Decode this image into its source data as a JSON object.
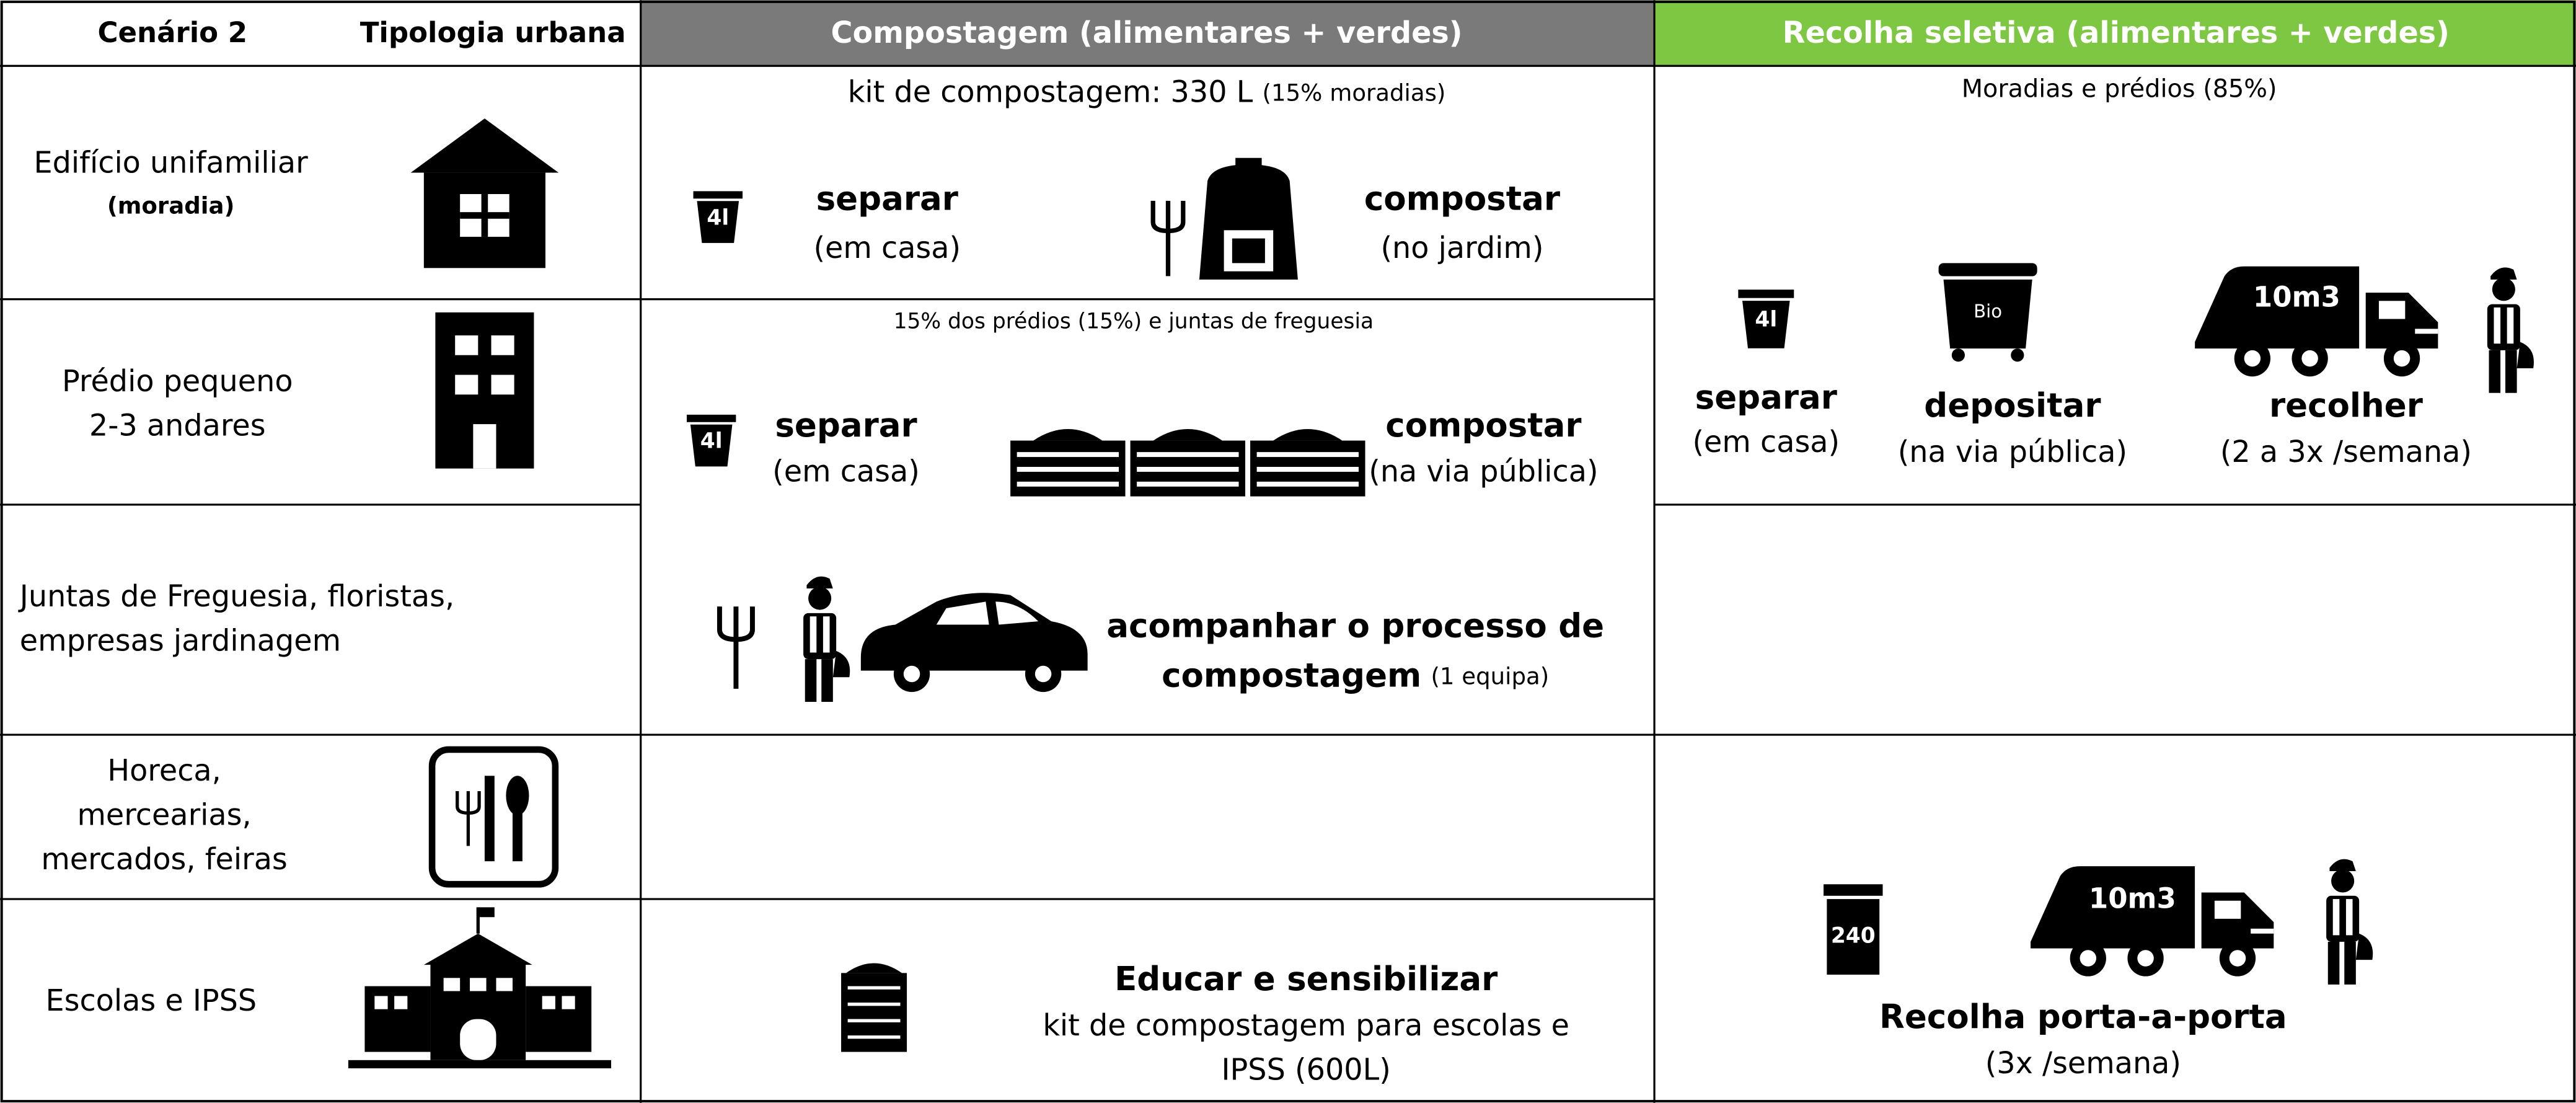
{
  "header": {
    "scenario": "Cenário 2",
    "typology": "Tipologia urbana",
    "composting": "Compostagem (alimentares + verdes)",
    "collection": "Recolha seletiva (alimentares + verdes)"
  },
  "typologies": [
    {
      "lines": [
        "Edifício unifamiliar",
        "(moradia)"
      ]
    },
    {
      "lines": [
        "Prédio pequeno",
        "2-3 andares"
      ]
    },
    {
      "lines": [
        "Juntas de Freguesia, floristas,",
        "empresas jardinagem"
      ]
    },
    {
      "lines": [
        "Horeca,",
        "mercearias,",
        "mercados, feiras"
      ]
    },
    {
      "lines": [
        "Escolas e IPSS"
      ]
    }
  ],
  "composting": {
    "households": {
      "title": "kit de compostagem: 330 L",
      "note": "(15% moradias)",
      "bin_label": "4l",
      "steps": [
        {
          "action": "separar",
          "place": "(em casa)"
        },
        {
          "action": "compostar",
          "place": "(no jardim)"
        }
      ]
    },
    "buildings": {
      "title": "15% dos prédios (15%) e juntas de freguesia",
      "bin_label": "4l",
      "steps": [
        {
          "action": "separar",
          "place": "(em casa)"
        },
        {
          "action": "compostar",
          "place": "(na via pública)"
        }
      ],
      "follow_up": {
        "line1": "acompanhar o processo de",
        "line2": "compostagem",
        "note": "(1 equipa)"
      }
    },
    "schools": {
      "title": "Educar e sensibilizar",
      "lines": [
        "kit de compostagem para escolas e",
        "IPSS (600L)"
      ]
    }
  },
  "collection": {
    "households": {
      "title": "Moradias e prédios (85%)",
      "bin_label": "4l",
      "container_label": "Bio",
      "truck_label": "10m3",
      "steps": [
        {
          "action": "separar",
          "place": "(em casa)"
        },
        {
          "action": "depositar",
          "place": "(na via pública)"
        },
        {
          "action": "recolher",
          "place": "(2 a 3x /semana)"
        }
      ]
    },
    "commerce": {
      "bin_label": "240",
      "truck_label": "10m3",
      "title": "Recolha porta-a-porta",
      "frequency": "(3x /semana)"
    }
  }
}
